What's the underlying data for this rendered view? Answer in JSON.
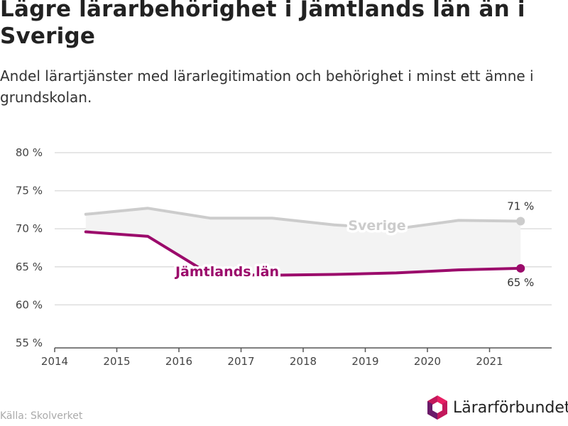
{
  "header": {
    "title": "Lägre lärarbehörighet i Jämtlands län än i Sverige",
    "subtitle": "Andel lärartjänster med lärarlegitimation och behörighet i minst ett ämne i grundskolan."
  },
  "footer": {
    "source": "Källa: Skolverket",
    "brand": "Lärarförbundet"
  },
  "colors": {
    "sverige": "#cccccc",
    "jamtland": "#9b0a6b",
    "gap_fill": "#f3f3f3",
    "grid": "#dddddd"
  },
  "chart_data": {
    "type": "line",
    "x_ticks": [
      "2014",
      "2015",
      "2016",
      "2017",
      "2018",
      "2019",
      "2020",
      "2021"
    ],
    "y_ticks": [
      "55 %",
      "60 %",
      "65 %",
      "70 %",
      "75 %",
      "80 %"
    ],
    "xlim": [
      2014,
      2022
    ],
    "ylim": [
      55,
      80
    ],
    "grid": true,
    "series": [
      {
        "name": "Sverige",
        "x": [
          2014.5,
          2015.5,
          2016.5,
          2017.5,
          2018.5,
          2019.5,
          2020.5,
          2021.5
        ],
        "y": [
          71.9,
          72.7,
          71.4,
          71.4,
          70.5,
          70.0,
          71.1,
          71.0
        ],
        "end_label": "71 %"
      },
      {
        "name": "Jämtlands län",
        "x": [
          2014.5,
          2015.5,
          2016.5,
          2017.5,
          2018.5,
          2019.5,
          2020.5,
          2021.5
        ],
        "y": [
          69.6,
          69.0,
          64.0,
          63.9,
          64.0,
          64.2,
          64.6,
          64.8
        ],
        "end_label": "65 %"
      }
    ]
  }
}
